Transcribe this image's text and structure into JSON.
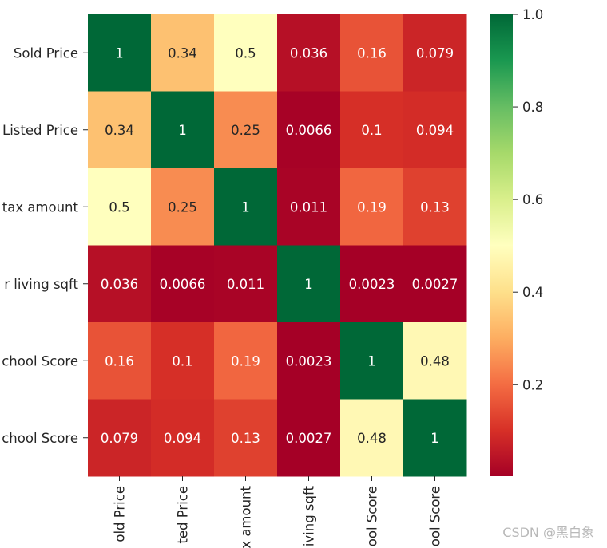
{
  "chart_data": {
    "type": "heatmap",
    "title": "",
    "row_labels": [
      "Sold Price",
      "Listed Price",
      "tax amount",
      "r living sqft",
      "chool Score",
      "chool Score"
    ],
    "col_labels": [
      "old Price",
      "ted Price",
      "x amount",
      "iving sqft",
      "ool Score",
      "ool Score"
    ],
    "values": [
      [
        1,
        0.34,
        0.5,
        0.036,
        0.16,
        0.079
      ],
      [
        0.34,
        1,
        0.25,
        0.0066,
        0.1,
        0.094
      ],
      [
        0.5,
        0.25,
        1,
        0.011,
        0.19,
        0.13
      ],
      [
        0.036,
        0.0066,
        0.011,
        1,
        0.0023,
        0.0027
      ],
      [
        0.16,
        0.1,
        0.19,
        0.0023,
        1,
        0.48
      ],
      [
        0.079,
        0.094,
        0.13,
        0.0027,
        0.48,
        1
      ]
    ],
    "annotations": [
      [
        "1",
        "0.34",
        "0.5",
        "0.036",
        "0.16",
        "0.079"
      ],
      [
        "0.34",
        "1",
        "0.25",
        "0.0066",
        "0.1",
        "0.094"
      ],
      [
        "0.5",
        "0.25",
        "1",
        "0.011",
        "0.19",
        "0.13"
      ],
      [
        "0.036",
        "0.0066",
        "0.011",
        "1",
        "0.0023",
        "0.0027"
      ],
      [
        "0.16",
        "0.1",
        "0.19",
        "0.0023",
        "1",
        "0.48"
      ],
      [
        "0.079",
        "0.094",
        "0.13",
        "0.0027",
        "0.48",
        "1"
      ]
    ],
    "colormap": "RdYlGn",
    "vmin": 0.0023,
    "vmax": 1.0,
    "colorbar": {
      "ticks": [
        0.2,
        0.4,
        0.6,
        0.8,
        1.0
      ],
      "tick_labels": [
        "0.2",
        "0.4",
        "0.6",
        "0.8",
        "1.0"
      ]
    }
  },
  "watermark": "CSDN @黑白象"
}
